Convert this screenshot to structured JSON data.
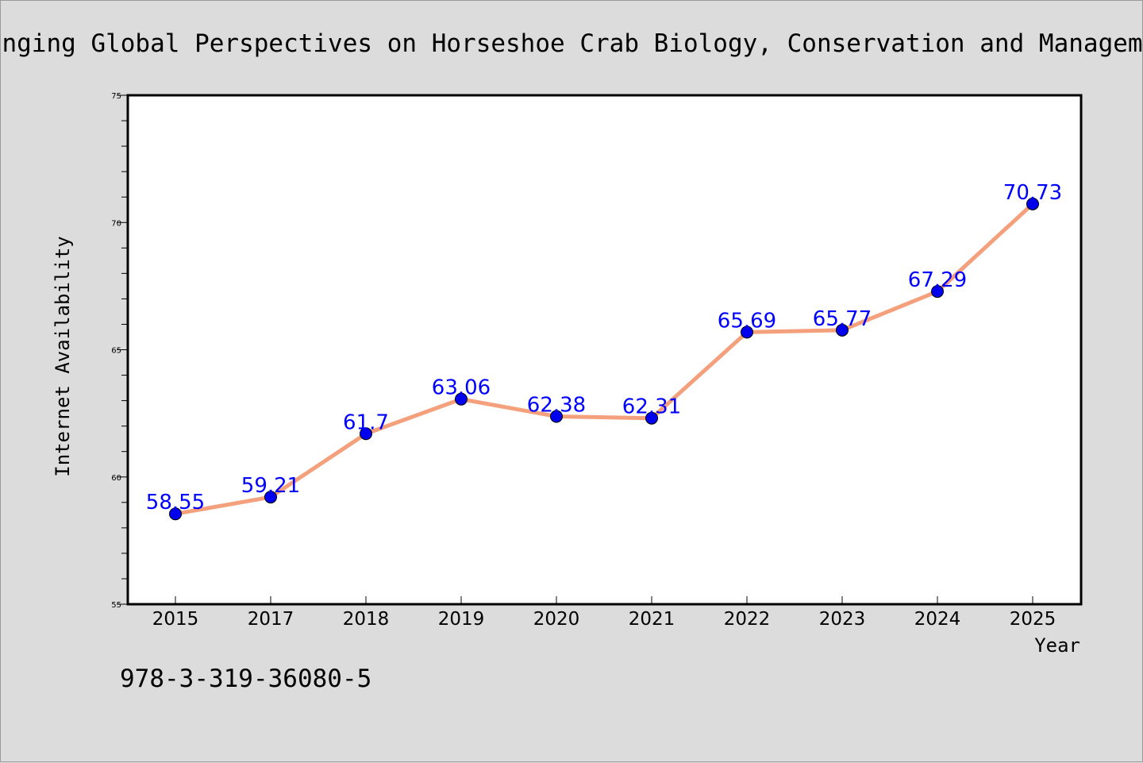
{
  "chart_data": {
    "type": "line",
    "title": "Changing Global Perspectives on Horseshoe Crab Biology, Conservation and Management",
    "xlabel": "Year",
    "ylabel": "Internet Availability",
    "categories": [
      "2015",
      "2017",
      "2018",
      "2019",
      "2020",
      "2021",
      "2022",
      "2023",
      "2024",
      "2025"
    ],
    "values": [
      58.55,
      59.21,
      61.7,
      63.06,
      62.38,
      62.31,
      65.69,
      65.77,
      67.29,
      70.73
    ],
    "data_labels": [
      "58.55",
      "59.21",
      "61.7",
      "63.06",
      "62.38",
      "62.31",
      "65.69",
      "65.77",
      "67.29",
      "70.73"
    ],
    "ylim": [
      55,
      75
    ],
    "yticks": [
      55,
      60,
      65,
      70,
      75
    ],
    "ytick_labels": [
      "55",
      "60",
      "65",
      "70",
      "75"
    ],
    "grid": false,
    "line_color": "#f4a07c",
    "marker_color": "#0000ee",
    "label_color": "#0000ff",
    "background_color": "#dcdcdc",
    "plot_background": "#ffffff"
  },
  "footer": {
    "isbn": "978-3-319-36080-5"
  }
}
